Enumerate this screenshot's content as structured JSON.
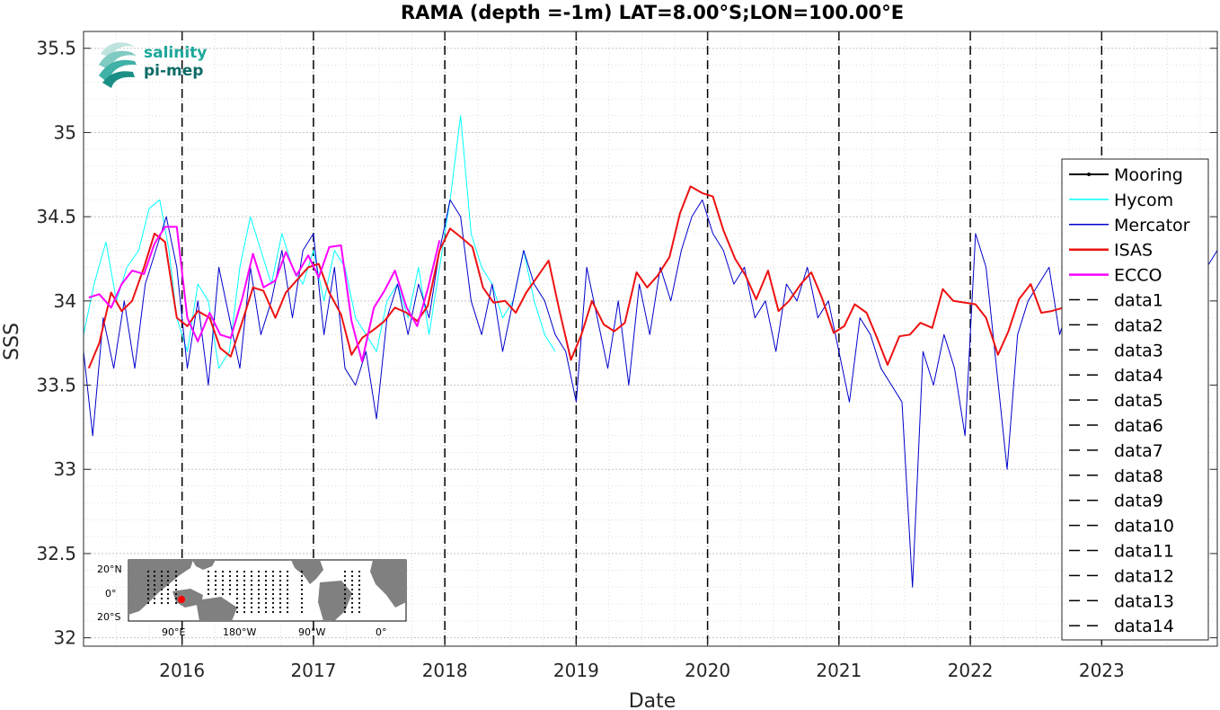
{
  "logo": {
    "line1": "salinity",
    "line2": "pi-mep",
    "color1": "#1aa79a",
    "color2": "#0e6b66"
  },
  "inset_map": {
    "lat_labels": [
      "20°N",
      "0°",
      "20°S"
    ],
    "lon_labels": [
      "90°E",
      "180°W",
      "90°W",
      "0°"
    ],
    "marker_color": "#ff0000"
  },
  "chart_data": {
    "type": "line",
    "title": "RAMA (depth =-1m) LAT=8.00°S;LON=100.00°E",
    "xlabel": "Date",
    "ylabel": "SSS",
    "xlim": [
      2015.25,
      2023.88
    ],
    "ylim": [
      31.95,
      35.6
    ],
    "x_ticks": [
      2016,
      2017,
      2018,
      2019,
      2020,
      2021,
      2022,
      2023
    ],
    "x_tick_labels": [
      "2016",
      "2017",
      "2018",
      "2019",
      "2020",
      "2021",
      "2022",
      "2023"
    ],
    "y_ticks": [
      32,
      32.5,
      33,
      33.5,
      34,
      34.5,
      35,
      35.5
    ],
    "y_tick_labels": [
      "32",
      "32.5",
      "33",
      "33.5",
      "34",
      "34.5",
      "35",
      "35.5"
    ],
    "grid": true,
    "legend_position": "right",
    "vertical_lines_x": [
      2016,
      2017,
      2018,
      2019,
      2020,
      2021,
      2022,
      2023
    ],
    "series": [
      {
        "name": "Mooring",
        "color": "#000000",
        "style": "solid-dot",
        "x": [],
        "y": []
      },
      {
        "name": "Hycom",
        "color": "#00ffff",
        "style": "solid",
        "x": [
          2015.25,
          2015.33,
          2015.42,
          2015.5,
          2015.58,
          2015.67,
          2015.75,
          2015.83,
          2015.9,
          2015.96,
          2016.04,
          2016.12,
          2016.2,
          2016.28,
          2016.36,
          2016.44,
          2016.52,
          2016.6,
          2016.68,
          2016.76,
          2016.84,
          2016.92,
          2017.0,
          2017.08,
          2017.16,
          2017.24,
          2017.32,
          2017.4,
          2017.48,
          2017.56,
          2017.64,
          2017.72,
          2017.8,
          2017.88,
          2017.96,
          2018.04,
          2018.12,
          2018.2,
          2018.28,
          2018.36,
          2018.44,
          2018.52,
          2018.6,
          2018.68,
          2018.76,
          2018.84
        ],
        "y": [
          33.8,
          34.1,
          34.35,
          34.0,
          34.2,
          34.3,
          34.55,
          34.6,
          34.3,
          33.9,
          33.7,
          34.1,
          34.0,
          33.6,
          33.7,
          34.2,
          34.5,
          34.3,
          34.1,
          34.4,
          34.2,
          34.1,
          34.3,
          34.0,
          34.3,
          34.2,
          33.9,
          33.8,
          33.7,
          34.0,
          34.1,
          33.9,
          34.2,
          33.8,
          34.2,
          34.6,
          35.1,
          34.4,
          34.2,
          34.1,
          33.9,
          34.0,
          34.3,
          34.0,
          33.8,
          33.7
        ]
      },
      {
        "name": "Mercator",
        "color": "#0000cc",
        "style": "solid",
        "x": [
          2015.25,
          2015.32,
          2015.4,
          2015.48,
          2015.56,
          2015.64,
          2015.72,
          2015.8,
          2015.88,
          2015.96,
          2016.04,
          2016.12,
          2016.2,
          2016.28,
          2016.36,
          2016.44,
          2016.52,
          2016.6,
          2016.68,
          2016.76,
          2016.84,
          2016.92,
          2017.0,
          2017.08,
          2017.16,
          2017.24,
          2017.32,
          2017.4,
          2017.48,
          2017.56,
          2017.64,
          2017.72,
          2017.8,
          2017.88,
          2017.96,
          2018.04,
          2018.12,
          2018.2,
          2018.28,
          2018.36,
          2018.44,
          2018.52,
          2018.6,
          2018.68,
          2018.76,
          2018.84,
          2018.92,
          2019.0,
          2019.08,
          2019.16,
          2019.24,
          2019.32,
          2019.4,
          2019.48,
          2019.56,
          2019.64,
          2019.72,
          2019.8,
          2019.88,
          2019.96,
          2020.04,
          2020.12,
          2020.2,
          2020.28,
          2020.36,
          2020.44,
          2020.52,
          2020.6,
          2020.68,
          2020.76,
          2020.84,
          2020.92,
          2021.0,
          2021.08,
          2021.16,
          2021.24,
          2021.32,
          2021.4,
          2021.48,
          2021.56,
          2021.64,
          2021.72,
          2021.8,
          2021.88,
          2021.96,
          2022.04,
          2022.12,
          2022.2,
          2022.28,
          2022.36,
          2022.44,
          2022.52,
          2022.6,
          2022.68,
          2022.76,
          2022.84,
          2022.92,
          2023.0,
          2023.08,
          2023.16,
          2023.24,
          2023.32,
          2023.4,
          2023.48,
          2023.56,
          2023.64,
          2023.72,
          2023.8,
          2023.88
        ],
        "y": [
          33.7,
          33.2,
          33.9,
          33.6,
          34.0,
          33.6,
          34.1,
          34.3,
          34.5,
          34.2,
          33.6,
          34.0,
          33.5,
          34.2,
          33.9,
          33.6,
          34.2,
          33.8,
          34.0,
          34.3,
          33.9,
          34.3,
          34.4,
          33.8,
          34.2,
          33.6,
          33.5,
          33.7,
          33.3,
          33.9,
          34.1,
          33.8,
          34.1,
          33.9,
          34.3,
          34.6,
          34.5,
          34.0,
          33.8,
          34.1,
          33.7,
          34.0,
          34.3,
          34.1,
          34.0,
          33.8,
          33.7,
          33.4,
          34.2,
          33.9,
          33.6,
          34.0,
          33.5,
          34.1,
          33.8,
          34.2,
          34.0,
          34.3,
          34.5,
          34.6,
          34.4,
          34.3,
          34.1,
          34.2,
          33.9,
          34.0,
          33.7,
          34.1,
          34.0,
          34.2,
          33.9,
          34.0,
          33.7,
          33.4,
          33.9,
          33.8,
          33.6,
          33.5,
          33.4,
          32.3,
          33.7,
          33.5,
          33.8,
          33.6,
          33.2,
          34.4,
          34.2,
          33.6,
          33.0,
          33.8,
          34.0,
          34.1,
          34.2,
          33.8,
          34.0,
          33.6,
          33.7,
          33.9,
          34.0,
          34.0,
          34.1,
          33.9,
          34.0,
          34.2,
          34.0,
          34.1,
          34.0,
          34.2,
          34.3
        ]
      },
      {
        "name": "ISAS",
        "color": "#ee1111",
        "style": "solid-thick",
        "x": [
          2015.29,
          2015.37,
          2015.46,
          2015.54,
          2015.62,
          2015.71,
          2015.79,
          2015.87,
          2015.96,
          2016.04,
          2016.12,
          2016.21,
          2016.29,
          2016.37,
          2016.46,
          2016.54,
          2016.62,
          2016.71,
          2016.79,
          2016.87,
          2016.96,
          2017.04,
          2017.12,
          2017.21,
          2017.29,
          2017.37,
          2017.46,
          2017.54,
          2017.62,
          2017.71,
          2017.79,
          2017.87,
          2017.96,
          2018.04,
          2018.12,
          2018.21,
          2018.29,
          2018.37,
          2018.46,
          2018.54,
          2018.62,
          2018.71,
          2018.79,
          2018.87,
          2018.96,
          2019.04,
          2019.12,
          2019.21,
          2019.29,
          2019.37,
          2019.46,
          2019.54,
          2019.62,
          2019.71,
          2019.79,
          2019.87,
          2019.96,
          2020.04,
          2020.12,
          2020.21,
          2020.29,
          2020.37,
          2020.46,
          2020.54,
          2020.62,
          2020.71,
          2020.79,
          2020.87,
          2020.96,
          2021.04,
          2021.12,
          2021.21,
          2021.29,
          2021.37,
          2021.46,
          2021.54,
          2021.62,
          2021.71,
          2021.79,
          2021.87,
          2021.96,
          2022.04,
          2022.12,
          2022.21,
          2022.29,
          2022.37,
          2022.46,
          2022.54,
          2022.62,
          2022.71
        ],
        "y": [
          33.6,
          33.75,
          34.05,
          33.94,
          34.0,
          34.2,
          34.4,
          34.35,
          33.9,
          33.85,
          33.94,
          33.9,
          33.72,
          33.67,
          33.88,
          34.08,
          34.06,
          33.9,
          34.05,
          34.12,
          34.2,
          34.22,
          34.05,
          33.92,
          33.68,
          33.78,
          33.83,
          33.88,
          33.96,
          33.93,
          33.88,
          33.97,
          34.3,
          34.43,
          34.38,
          34.32,
          34.08,
          33.99,
          34.0,
          33.93,
          34.05,
          34.15,
          34.24,
          33.95,
          33.65,
          33.8,
          34.0,
          33.86,
          33.82,
          33.87,
          34.17,
          34.08,
          34.15,
          34.26,
          34.52,
          34.68,
          34.64,
          34.62,
          34.42,
          34.25,
          34.15,
          34.01,
          34.18,
          33.94,
          34.0,
          34.1,
          34.17,
          34.02,
          33.81,
          33.85,
          33.98,
          33.93,
          33.78,
          33.62,
          33.79,
          33.8,
          33.87,
          33.84,
          34.07,
          34.0,
          33.99,
          33.98,
          33.9,
          33.68,
          33.82,
          34.01,
          34.1,
          33.93,
          33.94,
          33.96
        ]
      },
      {
        "name": "ECCO",
        "color": "#ff00ff",
        "style": "solid-thick",
        "x": [
          2015.29,
          2015.37,
          2015.46,
          2015.54,
          2015.62,
          2015.71,
          2015.79,
          2015.87,
          2015.96,
          2016.04,
          2016.12,
          2016.21,
          2016.29,
          2016.37,
          2016.46,
          2016.54,
          2016.62,
          2016.71,
          2016.79,
          2016.87,
          2016.96,
          2017.04,
          2017.12,
          2017.21,
          2017.29,
          2017.37,
          2017.46,
          2017.54,
          2017.62,
          2017.71,
          2017.79,
          2017.87,
          2017.96
        ],
        "y": [
          34.02,
          34.04,
          33.96,
          34.1,
          34.18,
          34.16,
          34.34,
          34.44,
          34.44,
          33.9,
          33.76,
          33.93,
          33.8,
          33.78,
          34.02,
          34.28,
          34.08,
          34.12,
          34.29,
          34.15,
          34.27,
          34.14,
          34.32,
          34.33,
          33.88,
          33.64,
          33.96,
          34.06,
          34.18,
          33.96,
          33.85,
          34.07,
          34.36
        ]
      },
      {
        "name": "data1",
        "color": "#000000",
        "style": "dashed",
        "x": [],
        "y": []
      },
      {
        "name": "data2",
        "color": "#000000",
        "style": "dashed",
        "x": [],
        "y": []
      },
      {
        "name": "data3",
        "color": "#000000",
        "style": "dashed",
        "x": [],
        "y": []
      },
      {
        "name": "data4",
        "color": "#000000",
        "style": "dashed",
        "x": [],
        "y": []
      },
      {
        "name": "data5",
        "color": "#000000",
        "style": "dashed",
        "x": [],
        "y": []
      },
      {
        "name": "data6",
        "color": "#000000",
        "style": "dashed",
        "x": [],
        "y": []
      },
      {
        "name": "data7",
        "color": "#000000",
        "style": "dashed",
        "x": [],
        "y": []
      },
      {
        "name": "data8",
        "color": "#000000",
        "style": "dashed",
        "x": [],
        "y": []
      },
      {
        "name": "data9",
        "color": "#000000",
        "style": "dashed",
        "x": [],
        "y": []
      },
      {
        "name": "data10",
        "color": "#000000",
        "style": "dashed",
        "x": [],
        "y": []
      },
      {
        "name": "data11",
        "color": "#000000",
        "style": "dashed",
        "x": [],
        "y": []
      },
      {
        "name": "data12",
        "color": "#000000",
        "style": "dashed",
        "x": [],
        "y": []
      },
      {
        "name": "data13",
        "color": "#000000",
        "style": "dashed",
        "x": [],
        "y": []
      },
      {
        "name": "data14",
        "color": "#000000",
        "style": "dashed",
        "x": [],
        "y": []
      }
    ]
  }
}
